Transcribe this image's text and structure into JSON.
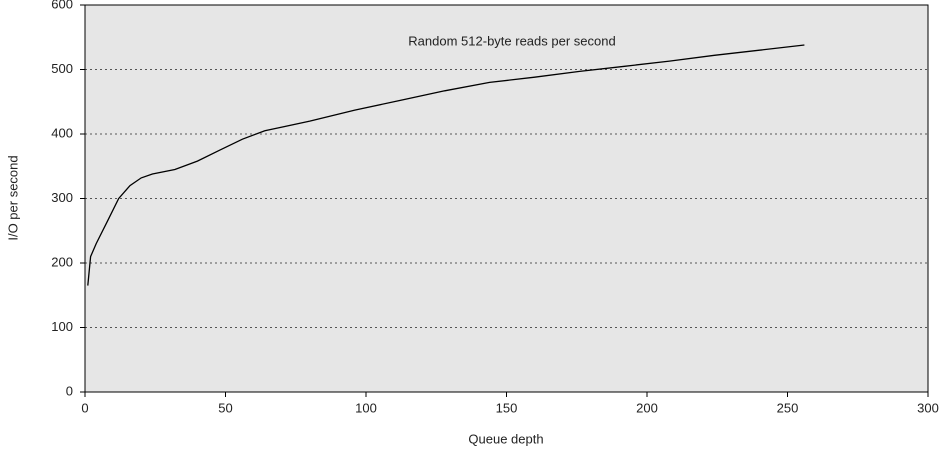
{
  "chart_data": {
    "type": "line",
    "x_label": "Queue depth",
    "y_label": "I/O per second",
    "x": [
      1,
      2,
      4,
      8,
      12,
      16,
      20,
      24,
      32,
      40,
      48,
      56,
      64,
      80,
      96,
      112,
      128,
      144,
      160,
      176,
      192,
      208,
      224,
      240,
      256
    ],
    "series": [
      {
        "name": "Random 512-byte reads per second",
        "color": "#000000",
        "values": [
          165,
          210,
          230,
          265,
          300,
          320,
          332,
          338,
          345,
          358,
          375,
          392,
          405,
          420,
          437,
          452,
          467,
          480,
          488,
          497,
          505,
          513,
          522,
          530,
          538
        ]
      }
    ],
    "xlim": [
      0,
      300
    ],
    "xticks": [
      0,
      50,
      100,
      150,
      200,
      250,
      300
    ],
    "ylim": [
      0,
      600
    ],
    "yticks": [
      0,
      100,
      200,
      300,
      400,
      500,
      600
    ],
    "grid": true
  }
}
